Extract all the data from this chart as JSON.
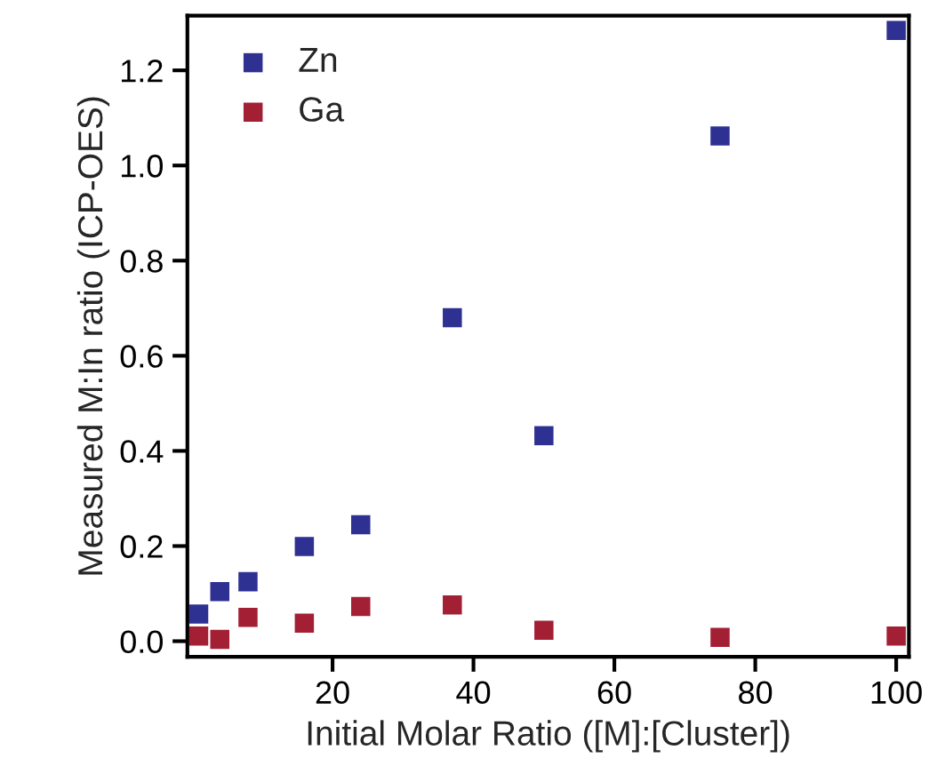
{
  "chart_data": {
    "type": "scatter",
    "xlabel": "Initial Molar Ratio ([M]:[Cluster])",
    "ylabel": "Measured M:In ratio (ICP-OES)",
    "x": [
      1,
      4,
      8,
      16,
      24,
      37,
      50,
      75,
      100
    ],
    "series": [
      {
        "name": "Zn",
        "color": "#2e3192",
        "values": [
          0.057,
          0.104,
          0.125,
          0.199,
          0.245,
          0.68,
          0.432,
          1.062,
          1.284
        ]
      },
      {
        "name": "Ga",
        "color": "#a31f34",
        "values": [
          0.011,
          0.004,
          0.05,
          0.038,
          0.073,
          0.076,
          0.023,
          0.008,
          0.011
        ]
      }
    ],
    "xlim": [
      -0.6,
      101.8
    ],
    "ylim": [
      -0.033,
      1.315
    ],
    "xticks": [
      20,
      40,
      60,
      80,
      100
    ],
    "yticks": [
      {
        "value": 0,
        "label": "0.0"
      },
      {
        "value": 0.2,
        "label": "0.2"
      },
      {
        "value": 0.4,
        "label": "0.4"
      },
      {
        "value": 0.6,
        "label": "0.6"
      },
      {
        "value": 0.8,
        "label": "0.8"
      },
      {
        "value": 1.0,
        "label": "1.0"
      },
      {
        "value": 1.2,
        "label": "1.2"
      }
    ],
    "marker": "square",
    "legend": "top left",
    "grid": false
  }
}
